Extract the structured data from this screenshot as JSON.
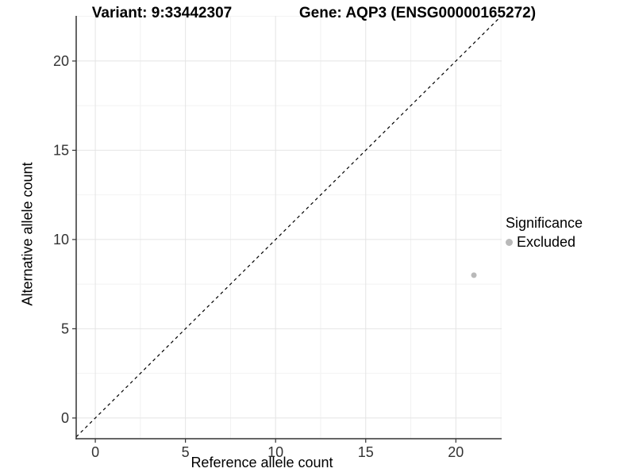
{
  "chart_data": {
    "type": "scatter",
    "title_left": "Variant: 9:33442307",
    "title_right": "Gene: AQP3 (ENSG00000165272)",
    "xlabel": "Reference allele count",
    "ylabel": "Alternative allele count",
    "xlim": [
      -1.06,
      22.54
    ],
    "ylim": [
      -1.16,
      22.53
    ],
    "x_ticks": [
      0,
      5,
      10,
      15,
      20
    ],
    "y_ticks": [
      0,
      5,
      10,
      15,
      20
    ],
    "x_minor_ticks": [
      2.5,
      7.5,
      12.5,
      17.5,
      22.5
    ],
    "y_minor_ticks": [
      2.5,
      7.5,
      12.5,
      17.5,
      22.5
    ],
    "grid": true,
    "identity_line": {
      "type": "abline",
      "slope": 1,
      "intercept": 0,
      "style": "dashed",
      "color": "#000000"
    },
    "series": [
      {
        "name": "Excluded",
        "color": "#b9b9b9",
        "points": [
          {
            "x": 21,
            "y": 8
          }
        ]
      }
    ],
    "legend": {
      "title": "Significance",
      "position": "right",
      "entries": [
        {
          "label": "Excluded",
          "color": "#b9b9b9"
        }
      ]
    },
    "colors": {
      "background": "#ffffff",
      "grid_major": "#e4e4e4",
      "grid_minor": "#f2f2f2",
      "axis_line": "#333333",
      "tick_label": "#333333",
      "title_text": "#000000"
    }
  }
}
